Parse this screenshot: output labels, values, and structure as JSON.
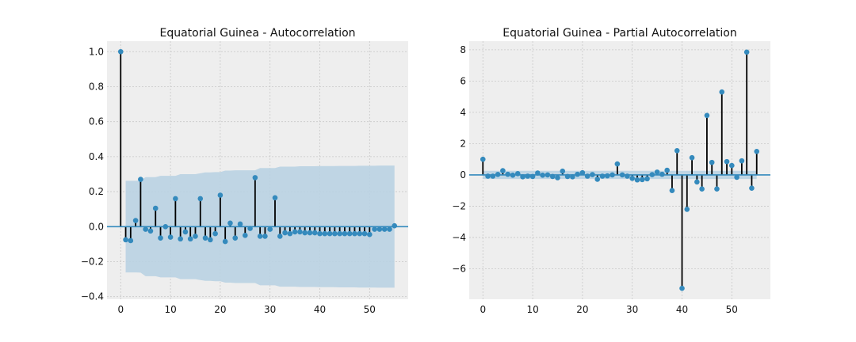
{
  "chart_data": [
    {
      "type": "stem",
      "title": "Equatorial Guinea - Autocorrelation",
      "xlabel": "",
      "ylabel": "",
      "xlim": [
        -2.75,
        57.75
      ],
      "ylim": [
        -0.415,
        1.06
      ],
      "xticks": [
        0,
        10,
        20,
        30,
        40,
        50
      ],
      "yticks": [
        -0.4,
        -0.2,
        0.0,
        0.2,
        0.4,
        0.6,
        0.8,
        1.0
      ],
      "ytick_labels": [
        "−0.4",
        "−0.2",
        "0.0",
        "0.2",
        "0.4",
        "0.6",
        "0.8",
        "1.0"
      ],
      "grid": true,
      "x": [
        0,
        1,
        2,
        3,
        4,
        5,
        6,
        7,
        8,
        9,
        10,
        11,
        12,
        13,
        14,
        15,
        16,
        17,
        18,
        19,
        20,
        21,
        22,
        23,
        24,
        25,
        26,
        27,
        28,
        29,
        30,
        31,
        32,
        33,
        34,
        35,
        36,
        37,
        38,
        39,
        40,
        41,
        42,
        43,
        44,
        45,
        46,
        47,
        48,
        49,
        50,
        51,
        52,
        53,
        54,
        55
      ],
      "values": [
        1.0,
        -0.075,
        -0.08,
        0.035,
        0.27,
        -0.015,
        -0.025,
        0.105,
        -0.065,
        0.0,
        -0.06,
        0.16,
        -0.07,
        -0.03,
        -0.07,
        -0.055,
        0.16,
        -0.065,
        -0.075,
        -0.04,
        0.18,
        -0.085,
        0.02,
        -0.065,
        0.015,
        -0.05,
        -0.01,
        0.28,
        -0.055,
        -0.055,
        -0.015,
        0.165,
        -0.055,
        -0.035,
        -0.04,
        -0.03,
        -0.03,
        -0.035,
        -0.035,
        -0.035,
        -0.04,
        -0.04,
        -0.04,
        -0.04,
        -0.04,
        -0.04,
        -0.04,
        -0.04,
        -0.04,
        -0.04,
        -0.045,
        -0.015,
        -0.015,
        -0.015,
        -0.015,
        0.005
      ],
      "confidence_band": {
        "x": [
          1,
          2,
          3,
          4,
          5,
          6,
          7,
          8,
          9,
          10,
          11,
          12,
          13,
          14,
          15,
          16,
          17,
          18,
          19,
          20,
          21,
          22,
          23,
          24,
          25,
          26,
          27,
          28,
          29,
          30,
          31,
          32,
          33,
          34,
          35,
          36,
          37,
          38,
          39,
          40,
          41,
          42,
          43,
          44,
          45,
          46,
          47,
          48,
          49,
          50,
          51,
          52,
          53,
          54,
          55
        ],
        "upper": [
          0.262,
          0.262,
          0.262,
          0.263,
          0.283,
          0.283,
          0.283,
          0.29,
          0.29,
          0.29,
          0.29,
          0.3,
          0.3,
          0.3,
          0.3,
          0.305,
          0.31,
          0.31,
          0.312,
          0.312,
          0.32,
          0.32,
          0.322,
          0.322,
          0.322,
          0.322,
          0.322,
          0.335,
          0.335,
          0.335,
          0.335,
          0.343,
          0.343,
          0.343,
          0.343,
          0.345,
          0.345,
          0.345,
          0.345,
          0.346,
          0.346,
          0.346,
          0.346,
          0.347,
          0.347,
          0.347,
          0.347,
          0.348,
          0.348,
          0.348,
          0.348,
          0.349,
          0.349,
          0.349,
          0.349
        ]
      }
    },
    {
      "type": "stem",
      "title": "Equatorial Guinea - Partial Autocorrelation",
      "xlabel": "",
      "ylabel": "",
      "xlim": [
        -2.75,
        57.75
      ],
      "ylim": [
        -7.95,
        8.55
      ],
      "xticks": [
        0,
        10,
        20,
        30,
        40,
        50
      ],
      "yticks": [
        -6,
        -4,
        -2,
        0,
        2,
        4,
        6,
        8
      ],
      "ytick_labels": [
        "−6",
        "−4",
        "−2",
        "0",
        "2",
        "4",
        "6",
        "8"
      ],
      "grid": true,
      "x": [
        0,
        1,
        2,
        3,
        4,
        5,
        6,
        7,
        8,
        9,
        10,
        11,
        12,
        13,
        14,
        15,
        16,
        17,
        18,
        19,
        20,
        21,
        22,
        23,
        24,
        25,
        26,
        27,
        28,
        29,
        30,
        31,
        32,
        33,
        34,
        35,
        36,
        37,
        38,
        39,
        40,
        41,
        42,
        43,
        44,
        45,
        46,
        47,
        48,
        49,
        50,
        51,
        52,
        53,
        54,
        55
      ],
      "values": [
        1.0,
        -0.08,
        -0.08,
        0.03,
        0.27,
        0.04,
        -0.02,
        0.08,
        -0.12,
        -0.08,
        -0.1,
        0.12,
        -0.02,
        0.0,
        -0.1,
        -0.18,
        0.24,
        -0.1,
        -0.12,
        0.04,
        0.14,
        -0.08,
        0.02,
        -0.28,
        -0.08,
        -0.06,
        0.0,
        0.7,
        0.0,
        -0.08,
        -0.22,
        -0.32,
        -0.3,
        -0.25,
        0.02,
        0.18,
        0.04,
        0.3,
        -1.0,
        1.55,
        -7.25,
        -2.2,
        1.1,
        -0.45,
        -0.9,
        3.8,
        0.8,
        -0.9,
        5.3,
        0.85,
        0.6,
        -0.15,
        0.9,
        7.85,
        -0.85,
        1.5
      ],
      "confidence_band": {
        "x": [
          0,
          55
        ],
        "upper": [
          0.26,
          0.26
        ]
      }
    }
  ]
}
